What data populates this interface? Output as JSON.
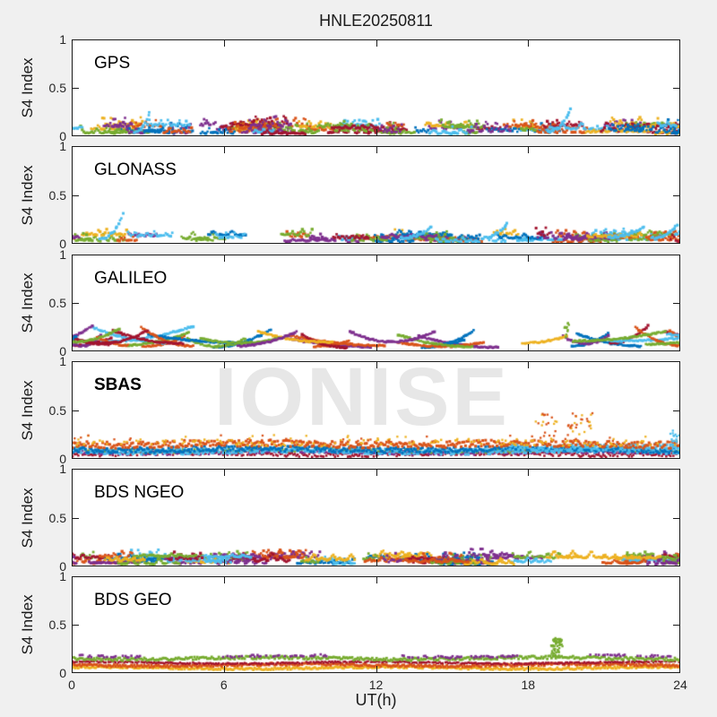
{
  "title": "HNLE20250811",
  "watermark": "IONISE",
  "axes": {
    "xlabel": "UT(h)",
    "ylabel": "S4 Index",
    "yticks": [
      "1",
      "0.5",
      "0"
    ],
    "xticks": [
      "0",
      "6",
      "12",
      "18",
      "24"
    ]
  },
  "colors": {
    "background": "#f0f0f0",
    "panel_background": "#ffffff",
    "axis_line": "#1a1a1a",
    "tick_text": "#262626",
    "watermark": "#e7e7e7"
  },
  "chart_data": {
    "type": "scatter",
    "title": "HNLE20250811",
    "xlabel": "UT(h)",
    "ylabel": "S4 Index",
    "xlim": [
      0,
      24
    ],
    "ylim": [
      0,
      1
    ],
    "xticks": [
      0,
      6,
      12,
      18,
      24
    ],
    "yticks": [
      0,
      0.5,
      1
    ],
    "grid": false,
    "legend": false,
    "palette": [
      "#0072BD",
      "#D95319",
      "#EDB120",
      "#7E2F8E",
      "#77AC30",
      "#4DBEEE",
      "#A2142F"
    ],
    "panels": [
      {
        "label": "GPS",
        "bold": false,
        "seed": 11,
        "tracks": {
          "count": 95,
          "len_h": [
            0.4,
            2.0
          ],
          "base": [
            0.015,
            0.105
          ],
          "amp": 0.09,
          "shape": "wiggle"
        },
        "arcs": [
          {
            "x": 2.75,
            "w": 0.3,
            "base": 0.03,
            "peak": 0.25,
            "color": "#4DBEEE"
          },
          {
            "x": 19.25,
            "w": 0.45,
            "base": 0.04,
            "peak": 0.27,
            "color": "#4DBEEE"
          }
        ]
      },
      {
        "label": "GLONASS",
        "bold": false,
        "seed": 22,
        "tracks": {
          "count": 62,
          "len_h": [
            0.5,
            2.2
          ],
          "base": [
            0.01,
            0.09
          ],
          "amp": 0.07,
          "shape": "wiggle"
        },
        "arcs": [
          {
            "x": 1.55,
            "w": 0.45,
            "base": 0.04,
            "peak": 0.3,
            "color": "#4DBEEE"
          },
          {
            "x": 13.6,
            "w": 0.6,
            "base": 0.05,
            "peak": 0.17,
            "color": "#4DBEEE"
          },
          {
            "x": 16.7,
            "w": 0.5,
            "base": 0.05,
            "peak": 0.2,
            "color": "#4DBEEE"
          },
          {
            "x": 21.9,
            "w": 0.7,
            "base": 0.06,
            "peak": 0.16,
            "color": "#4DBEEE"
          },
          {
            "x": 23.4,
            "w": 0.5,
            "base": 0.05,
            "peak": 0.19,
            "color": "#4DBEEE"
          }
        ]
      },
      {
        "label": "GALILEO",
        "bold": false,
        "seed": 33,
        "tracks": {
          "count": 42,
          "len_h": [
            1.2,
            3.8
          ],
          "base": [
            0.03,
            0.1
          ],
          "amp": 0.17,
          "shape": "arc"
        },
        "spikes": [
          {
            "x": 19.55,
            "w": 0.12,
            "base": 0.12,
            "peak": 0.29,
            "count": 12,
            "color": "#77AC30"
          }
        ]
      },
      {
        "label": "SBAS",
        "bold": true,
        "seed": 44,
        "stripes": [
          {
            "color": "#A2142F",
            "y": 0.045,
            "jitter": 0.025,
            "density": 1,
            "size": 2.5
          },
          {
            "color": "#7E2F8E",
            "y": 0.06,
            "jitter": 0.02,
            "density": 0.8,
            "size": 2.5
          },
          {
            "color": "#77AC30",
            "y": 0.08,
            "jitter": 0.02,
            "density": 0.7,
            "size": 2.5
          },
          {
            "color": "#4DBEEE",
            "y": 0.075,
            "jitter": 0.03,
            "density": 1,
            "size": 3
          },
          {
            "color": "#0072BD",
            "y": 0.09,
            "jitter": 0.03,
            "density": 1,
            "size": 3
          },
          {
            "color": "#4DBEEE",
            "y": 0.115,
            "jitter": 0.035,
            "density": 1,
            "size": 3,
            "x": [
              17.3,
              24
            ]
          },
          {
            "color": "#D95319",
            "y": 0.145,
            "jitter": 0.035,
            "density": 1,
            "size": 3
          },
          {
            "color": "#EDB120",
            "y": 0.16,
            "jitter": 0.03,
            "density": 0.3,
            "size": 2.5
          }
        ],
        "dots": [
          {
            "x": [
              0,
              24
            ],
            "count": 70,
            "s4": [
              0.14,
              0.24
            ],
            "colors": [
              "#EDB120",
              "#D95319"
            ]
          },
          {
            "x": [
              18.3,
              20.6
            ],
            "count": 50,
            "s4": [
              0.18,
              0.47
            ],
            "colors": [
              "#D95319",
              "#EDB120"
            ]
          },
          {
            "x": [
              23.5,
              24
            ],
            "count": 18,
            "s4": [
              0.1,
              0.3
            ],
            "colors": [
              "#4DBEEE"
            ]
          }
        ]
      },
      {
        "label": "BDS NGEO",
        "bold": false,
        "seed": 55,
        "tracks": {
          "count": 80,
          "len_h": [
            0.5,
            2.5
          ],
          "base": [
            0.015,
            0.1
          ],
          "amp": 0.075,
          "shape": "wiggle"
        }
      },
      {
        "label": "BDS GEO",
        "bold": false,
        "seed": 66,
        "stripes": [
          {
            "color": "#EDB120",
            "y": 0.045,
            "jitter": 0.012,
            "density": 1,
            "size": 2.8
          },
          {
            "color": "#D95319",
            "y": 0.075,
            "jitter": 0.014,
            "density": 1,
            "size": 2.8
          },
          {
            "color": "#A2142F",
            "y": 0.1,
            "jitter": 0.008,
            "density": 0.9,
            "size": 2.4
          },
          {
            "color": "#77AC30",
            "y": 0.145,
            "jitter": 0.016,
            "density": 1,
            "size": 2.8
          },
          {
            "color": "#7E2F8E",
            "y": 0.168,
            "jitter": 0.012,
            "density": 0.45,
            "size": 2.6,
            "gaps": true
          }
        ],
        "spikes": [
          {
            "x": 19.15,
            "w": 0.3,
            "base": 0.16,
            "peak": 0.36,
            "count": 55,
            "color": "#77AC30"
          }
        ]
      }
    ]
  }
}
